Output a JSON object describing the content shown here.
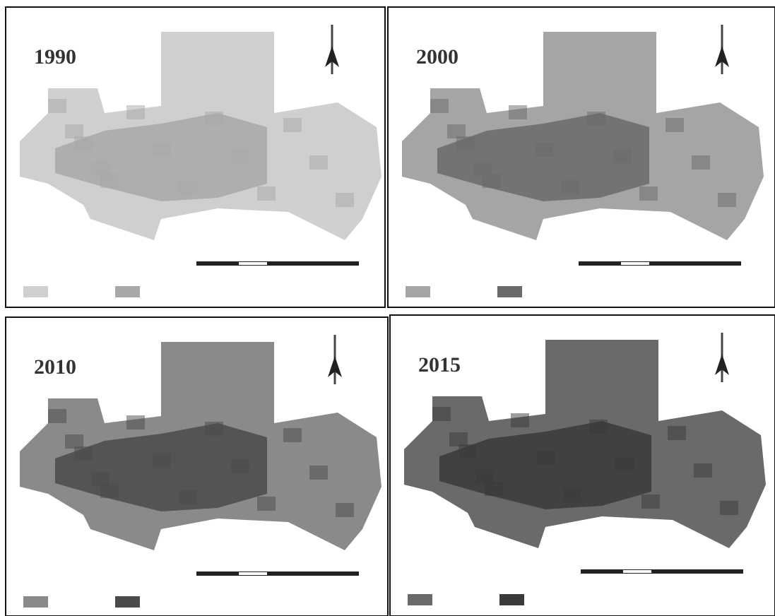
{
  "panels": [
    {
      "year": "1990"
    },
    {
      "year": "2000"
    },
    {
      "year": "2010"
    },
    {
      "year": "2015"
    }
  ]
}
